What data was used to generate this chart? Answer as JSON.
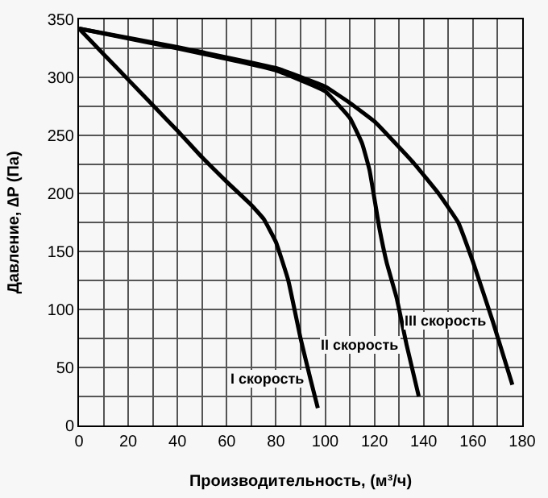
{
  "chart_data": {
    "type": "line",
    "xlabel": "Производительность, (м³/ч)",
    "ylabel": "Давление, ∆P (Па)",
    "xlim": [
      0,
      180
    ],
    "ylim": [
      0,
      350
    ],
    "xticks": [
      0,
      20,
      40,
      60,
      80,
      100,
      120,
      140,
      160,
      180
    ],
    "yticks": [
      0,
      50,
      100,
      150,
      200,
      250,
      300,
      350
    ],
    "grid": true,
    "legend": false,
    "marker": "none",
    "line_style": "solid",
    "series": [
      {
        "name": "I скорость",
        "color": "#000000",
        "x": [
          0,
          10,
          20,
          30,
          40,
          50,
          60,
          70,
          75,
          80,
          85,
          90,
          94,
          97
        ],
        "values": [
          342,
          320,
          298,
          276,
          254,
          231,
          210,
          190,
          178,
          158,
          125,
          75,
          40,
          15
        ]
      },
      {
        "name": "II скорость",
        "color": "#000000",
        "x": [
          0,
          40,
          80,
          100,
          110,
          115,
          118,
          122,
          125,
          129,
          133,
          138
        ],
        "values": [
          342,
          325,
          306,
          288,
          265,
          243,
          220,
          170,
          140,
          110,
          70,
          25
        ]
      },
      {
        "name": "III скорость",
        "color": "#000000",
        "x": [
          0,
          40,
          80,
          100,
          110,
          120,
          136,
          146,
          154,
          160,
          168,
          176
        ],
        "values": [
          342,
          326,
          308,
          292,
          278,
          262,
          226,
          200,
          175,
          141,
          90,
          35
        ]
      }
    ]
  }
}
